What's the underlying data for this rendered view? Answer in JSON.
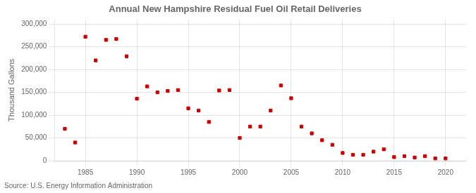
{
  "chart_data": {
    "type": "scatter",
    "title": "Annual New Hampshire Residual Fuel Oil Retail Deliveries",
    "ylabel": "Thousand Gallons",
    "annotations": [
      "Source: U.S. Energy Information Administration"
    ],
    "color": "#cc0000",
    "marker": "square",
    "grid": true,
    "x": [
      1983,
      1984,
      1985,
      1986,
      1987,
      1988,
      1989,
      1990,
      1991,
      1992,
      1993,
      1994,
      1995,
      1996,
      1997,
      1998,
      1999,
      2000,
      2001,
      2002,
      2003,
      2004,
      2005,
      2006,
      2007,
      2008,
      2009,
      2010,
      2011,
      2012,
      2013,
      2014,
      2015,
      2016,
      2017,
      2018,
      2019,
      2020
    ],
    "values": [
      70000,
      40000,
      272000,
      220000,
      265000,
      267000,
      229000,
      136000,
      163000,
      150000,
      153000,
      155000,
      115000,
      110000,
      85000,
      154000,
      155000,
      50000,
      75000,
      75000,
      110000,
      165000,
      137000,
      75000,
      60000,
      45000,
      35000,
      17000,
      13000,
      13000,
      20000,
      25000,
      8000,
      10000,
      7000,
      10000,
      5000,
      5000
    ],
    "xlim": [
      1982,
      2022
    ],
    "xticks": [
      1985,
      1990,
      1995,
      2000,
      2005,
      2010,
      2015,
      2020
    ],
    "ylim": [
      0,
      310000
    ],
    "yticks": [
      0,
      {
        "value": 50000,
        "label": "50,000"
      },
      {
        "value": 100000,
        "label": "100,000"
      },
      {
        "value": 150000,
        "label": "150,000"
      },
      {
        "value": 200000,
        "label": "200,000"
      },
      {
        "value": 250000,
        "label": "250,000"
      },
      {
        "value": 300000,
        "label": "300,000"
      }
    ]
  }
}
